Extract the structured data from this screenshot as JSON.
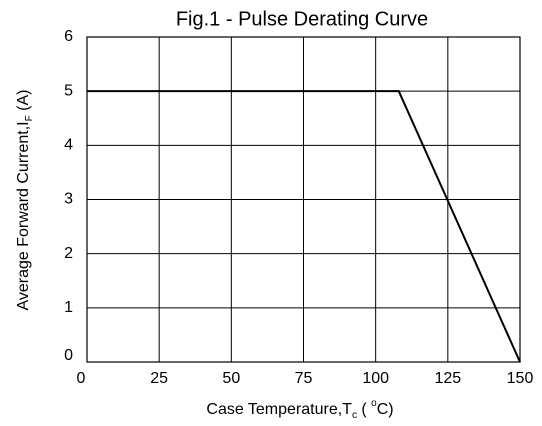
{
  "chart_data": {
    "type": "line",
    "title": "Fig.1 - Pulse Derating Curve",
    "xlabel": [
      "Case Temperature,T",
      "c",
      " ( ",
      "o",
      "C)"
    ],
    "ylabel": [
      "Average Forward Current,I",
      "F",
      " (A)"
    ],
    "series": [
      {
        "color": "#000000",
        "x": [
          0,
          108,
          150
        ],
        "values": [
          5,
          5,
          0
        ]
      }
    ],
    "xlim": [
      0,
      150
    ],
    "xticks": [
      0,
      25,
      50,
      75,
      100,
      125,
      150
    ],
    "ylim": [
      0,
      6
    ],
    "yticks": [
      0,
      1,
      2,
      3,
      4,
      5,
      6
    ],
    "grid": true
  }
}
